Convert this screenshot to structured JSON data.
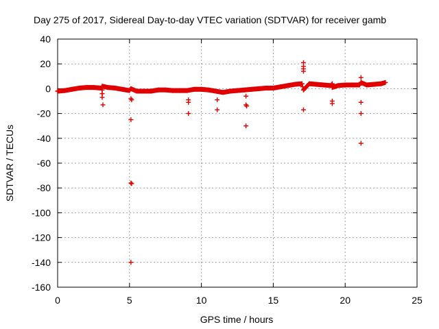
{
  "chart_data": {
    "type": "scatter",
    "title": "Day 275 of 2017, Sidereal Day-to-day VTEC variation (SDTVAR) for receiver gamb",
    "xlabel": "GPS time / hours",
    "ylabel": "SDTVAR / TECUs",
    "xlim": [
      0,
      25
    ],
    "ylim": [
      -160,
      40
    ],
    "xticks": [
      "0",
      "5",
      "10",
      "15",
      "20",
      "25"
    ],
    "yticks": [
      "40",
      "20",
      "0",
      "-20",
      "-40",
      "-60",
      "-80",
      "-100",
      "-120",
      "-140",
      "-160"
    ],
    "grid": true,
    "marker": "+",
    "color": "#e00000",
    "series": [
      {
        "name": "SDTVAR",
        "points": [
          [
            0.0,
            -2
          ],
          [
            0.5,
            -1.5
          ],
          [
            1.0,
            -0.5
          ],
          [
            1.5,
            0.5
          ],
          [
            2.0,
            1
          ],
          [
            2.5,
            1
          ],
          [
            3.0,
            0.5
          ],
          [
            3.1,
            1
          ],
          [
            3.1,
            -1
          ],
          [
            3.1,
            -4
          ],
          [
            3.1,
            -7
          ],
          [
            3.15,
            -13
          ],
          [
            3.1,
            2
          ],
          [
            3.5,
            1
          ],
          [
            4.0,
            0.5
          ],
          [
            4.5,
            -0.5
          ],
          [
            5.0,
            -1.5
          ],
          [
            5.1,
            0
          ],
          [
            5.1,
            -8
          ],
          [
            5.15,
            -9
          ],
          [
            5.1,
            -25
          ],
          [
            5.1,
            -76
          ],
          [
            5.15,
            -76.5
          ],
          [
            5.1,
            -140
          ],
          [
            5.5,
            -2
          ],
          [
            6.0,
            -2
          ],
          [
            6.5,
            -2
          ],
          [
            7.0,
            -1
          ],
          [
            7.5,
            -1
          ],
          [
            8.0,
            -1.5
          ],
          [
            8.5,
            -1.5
          ],
          [
            9.0,
            -1.5
          ],
          [
            9.1,
            -9
          ],
          [
            9.1,
            -11
          ],
          [
            9.1,
            -20
          ],
          [
            9.5,
            -0.5
          ],
          [
            10.0,
            -0.5
          ],
          [
            10.5,
            -1
          ],
          [
            11.0,
            -2
          ],
          [
            11.1,
            -9
          ],
          [
            11.1,
            -17
          ],
          [
            11.5,
            -3
          ],
          [
            12.0,
            -2
          ],
          [
            12.5,
            -1.5
          ],
          [
            13.0,
            -1
          ],
          [
            13.1,
            -6
          ],
          [
            13.1,
            -13
          ],
          [
            13.15,
            -14
          ],
          [
            13.1,
            -30
          ],
          [
            13.5,
            -0.5
          ],
          [
            14.0,
            0
          ],
          [
            14.5,
            0.5
          ],
          [
            15.0,
            0.5
          ],
          [
            15.5,
            1.5
          ],
          [
            16.0,
            2.5
          ],
          [
            16.5,
            3.5
          ],
          [
            17.0,
            4
          ],
          [
            17.1,
            21
          ],
          [
            17.1,
            18
          ],
          [
            17.1,
            16
          ],
          [
            17.1,
            14
          ],
          [
            17.1,
            -1
          ],
          [
            17.1,
            -17
          ],
          [
            17.5,
            4
          ],
          [
            18.0,
            3.5
          ],
          [
            18.5,
            3
          ],
          [
            19.0,
            2.5
          ],
          [
            19.1,
            4
          ],
          [
            19.1,
            1
          ],
          [
            19.1,
            -10
          ],
          [
            19.1,
            -12
          ],
          [
            19.5,
            2.5
          ],
          [
            20.0,
            3
          ],
          [
            20.5,
            3
          ],
          [
            21.0,
            3
          ],
          [
            21.1,
            9
          ],
          [
            21.1,
            5
          ],
          [
            21.1,
            -11
          ],
          [
            21.1,
            -20
          ],
          [
            21.1,
            -44
          ],
          [
            21.5,
            3
          ],
          [
            22.0,
            3.5
          ],
          [
            22.5,
            4
          ],
          [
            22.8,
            5
          ]
        ]
      }
    ]
  }
}
